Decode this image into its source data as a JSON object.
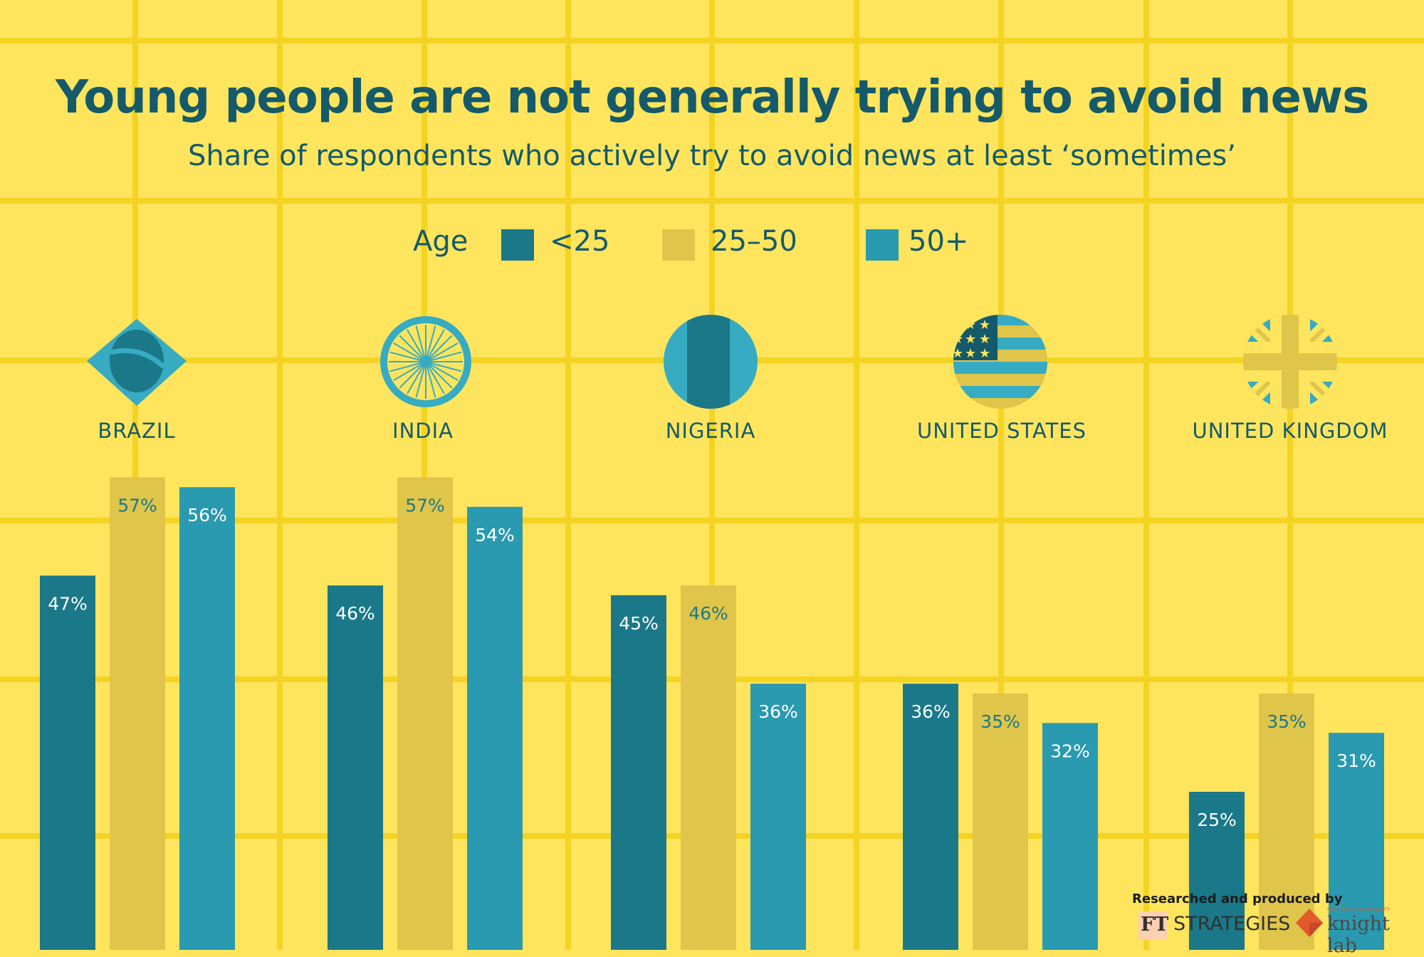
{
  "colors": {
    "background": "#FFE55E",
    "grid": "#F4D323",
    "text": "#155A6A",
    "under25": "#1B7889",
    "age25to50": "#DFC54A",
    "over50": "#2A9AB0",
    "flag_light": "#36ABC2",
    "label_light": "#FFFFFF",
    "label_dark": "#1B7889"
  },
  "credits": {
    "label": "Researched and produced by",
    "ft_mark": "FT",
    "ft_name": "STRATEGIES",
    "kl_small": "NORTHWESTERN UNIVERSITY",
    "kl_name": "knight lab"
  },
  "chart_data": {
    "type": "bar",
    "title": "Young people are not generally trying to avoid news",
    "subtitle": "Share of respondents who actively try to avoid news at least ‘sometimes’",
    "legend_title": "Age",
    "legend_position": "top-center",
    "xlabel": "",
    "ylabel": "",
    "grid": true,
    "unit": "%",
    "categories": [
      "BRAZIL",
      "INDIA",
      "NIGERIA",
      "UNITED STATES",
      "UNITED KINGDOM"
    ],
    "flags": [
      "brazil-flag-icon",
      "india-flag-icon",
      "nigeria-flag-icon",
      "us-flag-icon",
      "uk-flag-icon"
    ],
    "series": [
      {
        "name": "<25",
        "values": [
          47,
          46,
          45,
          36,
          25
        ]
      },
      {
        "name": "25–50",
        "values": [
          57,
          57,
          46,
          35,
          35
        ]
      },
      {
        "name": "50+",
        "values": [
          56,
          54,
          36,
          32,
          31
        ]
      }
    ]
  }
}
